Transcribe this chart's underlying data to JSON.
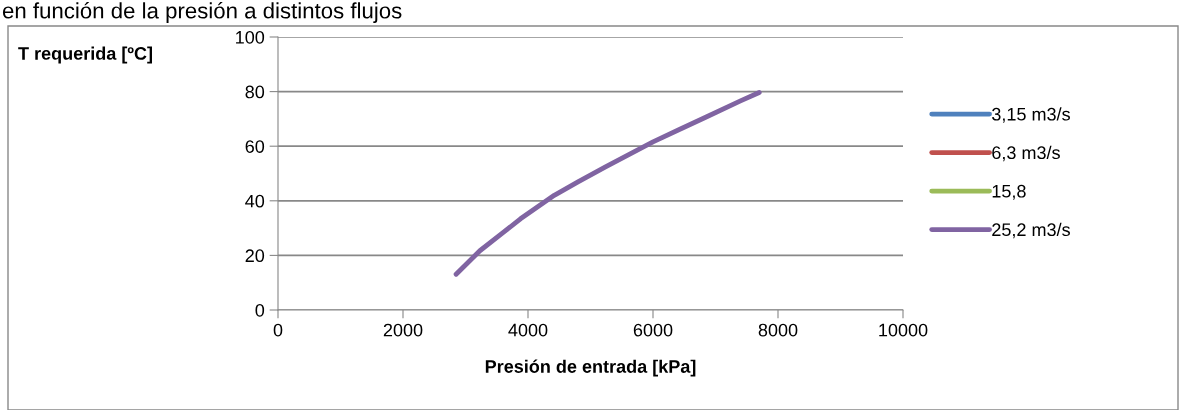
{
  "chart_data": {
    "type": "line",
    "title": "en función de la presión a distintos flujos",
    "xlabel": "Presión de entrada [kPa]",
    "ylabel": "T requerida [ºC]",
    "x": [
      2850,
      3230,
      3610,
      3880,
      4420,
      4800,
      5240,
      6000,
      6430,
      6860,
      7400,
      7700
    ],
    "series": [
      {
        "name": "3,15 m3/s",
        "color": "#4f81bd",
        "values": [
          null,
          null,
          null,
          null,
          null,
          null,
          null,
          null,
          null,
          null,
          null,
          null
        ]
      },
      {
        "name": "6,3 m3/s",
        "color": "#c0504d",
        "values": [
          null,
          null,
          null,
          null,
          null,
          null,
          null,
          null,
          null,
          null,
          null,
          null
        ]
      },
      {
        "name": "15,8",
        "color": "#9bbb59",
        "values": [
          null,
          null,
          null,
          null,
          null,
          null,
          null,
          null,
          null,
          null,
          null,
          null
        ]
      },
      {
        "name": "25,2 m3/s",
        "color": "#8064a2",
        "values": [
          13.1,
          21.7,
          28.5,
          33.4,
          42,
          46.9,
          52.4,
          61.6,
          66.2,
          70.8,
          76.6,
          79.7
        ]
      }
    ],
    "xlim": [
      0,
      10000
    ],
    "xticks": [
      0,
      2000,
      4000,
      6000,
      8000,
      10000
    ],
    "ylim": [
      0,
      100
    ],
    "yticks": [
      0,
      20,
      40,
      60,
      80,
      100
    ],
    "grid": "y",
    "legend": "right",
    "marker": "none",
    "line_style": "solid"
  }
}
